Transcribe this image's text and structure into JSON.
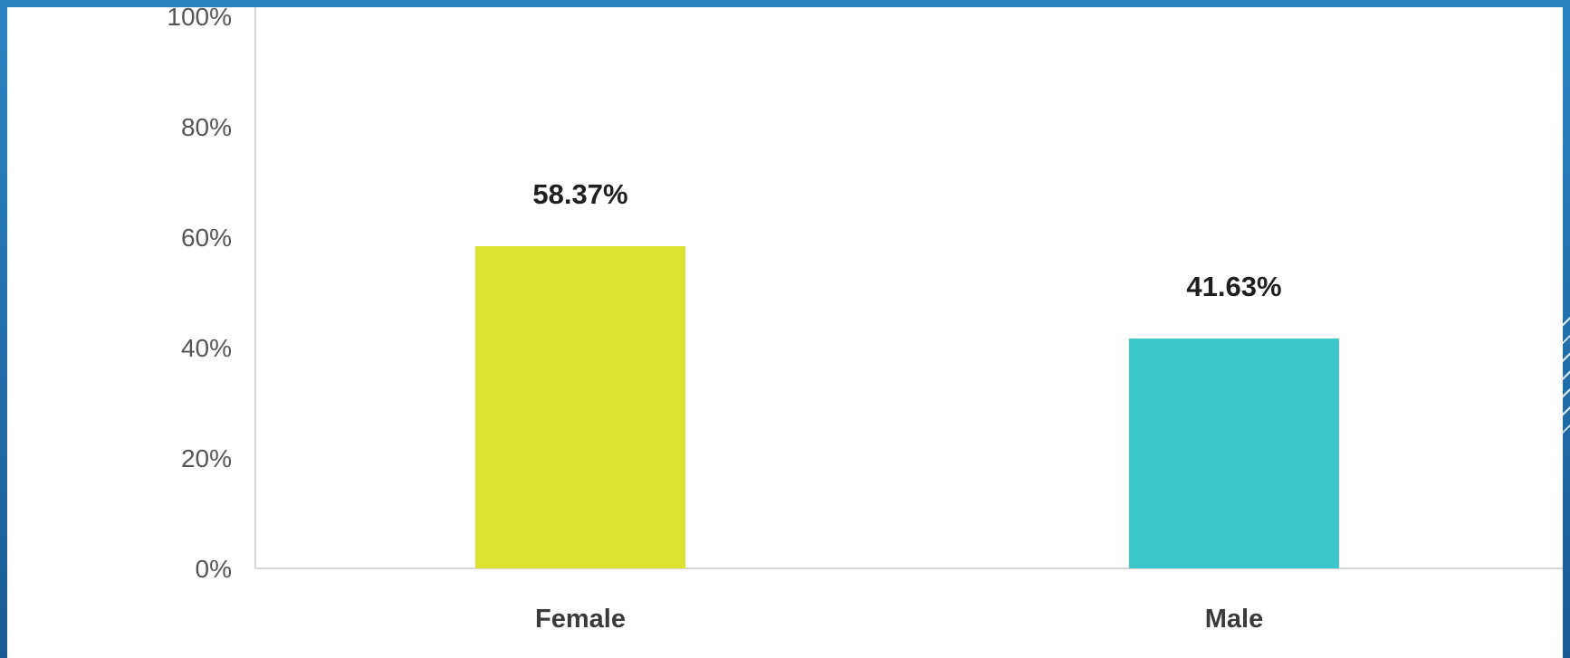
{
  "chart_data": {
    "type": "bar",
    "categories": [
      "Female",
      "Male"
    ],
    "values": [
      58.37,
      41.63
    ],
    "data_labels": [
      "58.37%",
      "41.63%"
    ],
    "colors": [
      "#dbe330",
      "#3cc8ca"
    ],
    "ylim": [
      0,
      100
    ],
    "yticks": [
      0,
      20,
      40,
      60,
      80,
      100
    ],
    "ytick_labels": [
      "0%",
      "20%",
      "40%",
      "60%",
      "80%",
      "100%"
    ],
    "grid": false,
    "legend": "none"
  }
}
